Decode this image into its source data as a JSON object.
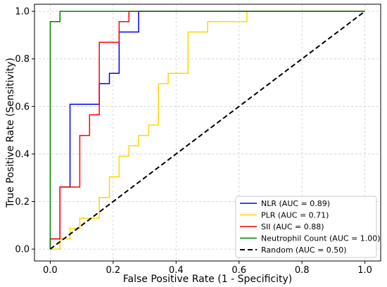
{
  "chart_data": {
    "type": "line",
    "title": "",
    "xlabel": "False Positive Rate (1 - Specificity)",
    "ylabel": "True Positive Rate (Sensitivity)",
    "xlim": [
      -0.05,
      1.05
    ],
    "ylim": [
      -0.05,
      1.03
    ],
    "xticks": [
      0.0,
      0.2,
      0.4,
      0.6,
      0.8,
      1.0
    ],
    "yticks": [
      0.0,
      0.2,
      0.4,
      0.6,
      0.8,
      1.0
    ],
    "tick_labels": [
      "0.0",
      "0.2",
      "0.4",
      "0.6",
      "0.8",
      "1.0"
    ],
    "grid": true,
    "grid_style": "dashed",
    "legend_position": "lower-right",
    "series": [
      {
        "name": "NLR (AUC = 0.89)",
        "color": "#0000ff",
        "dash": false,
        "points": [
          [
            0,
            0
          ],
          [
            0,
            0.043
          ],
          [
            0.031,
            0.043
          ],
          [
            0.031,
            0.261
          ],
          [
            0.063,
            0.261
          ],
          [
            0.063,
            0.609
          ],
          [
            0.156,
            0.609
          ],
          [
            0.156,
            0.696
          ],
          [
            0.188,
            0.696
          ],
          [
            0.188,
            0.739
          ],
          [
            0.219,
            0.739
          ],
          [
            0.219,
            0.913
          ],
          [
            0.281,
            0.913
          ],
          [
            0.281,
            1.0
          ],
          [
            1.0,
            1.0
          ]
        ]
      },
      {
        "name": "PLR (AUC = 0.71)",
        "color": "#ffd700",
        "dash": false,
        "points": [
          [
            0,
            0
          ],
          [
            0.031,
            0
          ],
          [
            0.031,
            0.043
          ],
          [
            0.063,
            0.043
          ],
          [
            0.063,
            0.087
          ],
          [
            0.094,
            0.087
          ],
          [
            0.094,
            0.13
          ],
          [
            0.156,
            0.13
          ],
          [
            0.156,
            0.217
          ],
          [
            0.188,
            0.217
          ],
          [
            0.188,
            0.304
          ],
          [
            0.219,
            0.304
          ],
          [
            0.219,
            0.391
          ],
          [
            0.25,
            0.391
          ],
          [
            0.25,
            0.435
          ],
          [
            0.281,
            0.435
          ],
          [
            0.281,
            0.478
          ],
          [
            0.313,
            0.478
          ],
          [
            0.313,
            0.522
          ],
          [
            0.344,
            0.522
          ],
          [
            0.344,
            0.696
          ],
          [
            0.375,
            0.696
          ],
          [
            0.375,
            0.739
          ],
          [
            0.438,
            0.739
          ],
          [
            0.438,
            0.913
          ],
          [
            0.5,
            0.913
          ],
          [
            0.5,
            0.957
          ],
          [
            0.625,
            0.957
          ],
          [
            0.625,
            1.0
          ],
          [
            1.0,
            1.0
          ]
        ]
      },
      {
        "name": "SII (AUC = 0.88)",
        "color": "#ff0000",
        "dash": false,
        "points": [
          [
            0,
            0
          ],
          [
            0,
            0.043
          ],
          [
            0.031,
            0.043
          ],
          [
            0.031,
            0.261
          ],
          [
            0.094,
            0.261
          ],
          [
            0.094,
            0.478
          ],
          [
            0.125,
            0.478
          ],
          [
            0.125,
            0.565
          ],
          [
            0.156,
            0.565
          ],
          [
            0.156,
            0.87
          ],
          [
            0.219,
            0.87
          ],
          [
            0.219,
            0.957
          ],
          [
            0.25,
            0.957
          ],
          [
            0.25,
            1.0
          ],
          [
            1.0,
            1.0
          ]
        ]
      },
      {
        "name": "Neutrophil Count (AUC = 1.00)",
        "color": "#008000",
        "dash": false,
        "points": [
          [
            0,
            0
          ],
          [
            0,
            0.957
          ],
          [
            0.031,
            0.957
          ],
          [
            0.031,
            1.0
          ],
          [
            1.0,
            1.0
          ]
        ]
      },
      {
        "name": "Random (AUC = 0.50)",
        "color": "#000000",
        "dash": true,
        "points": [
          [
            0,
            0
          ],
          [
            1.0,
            1.0
          ]
        ]
      }
    ]
  }
}
